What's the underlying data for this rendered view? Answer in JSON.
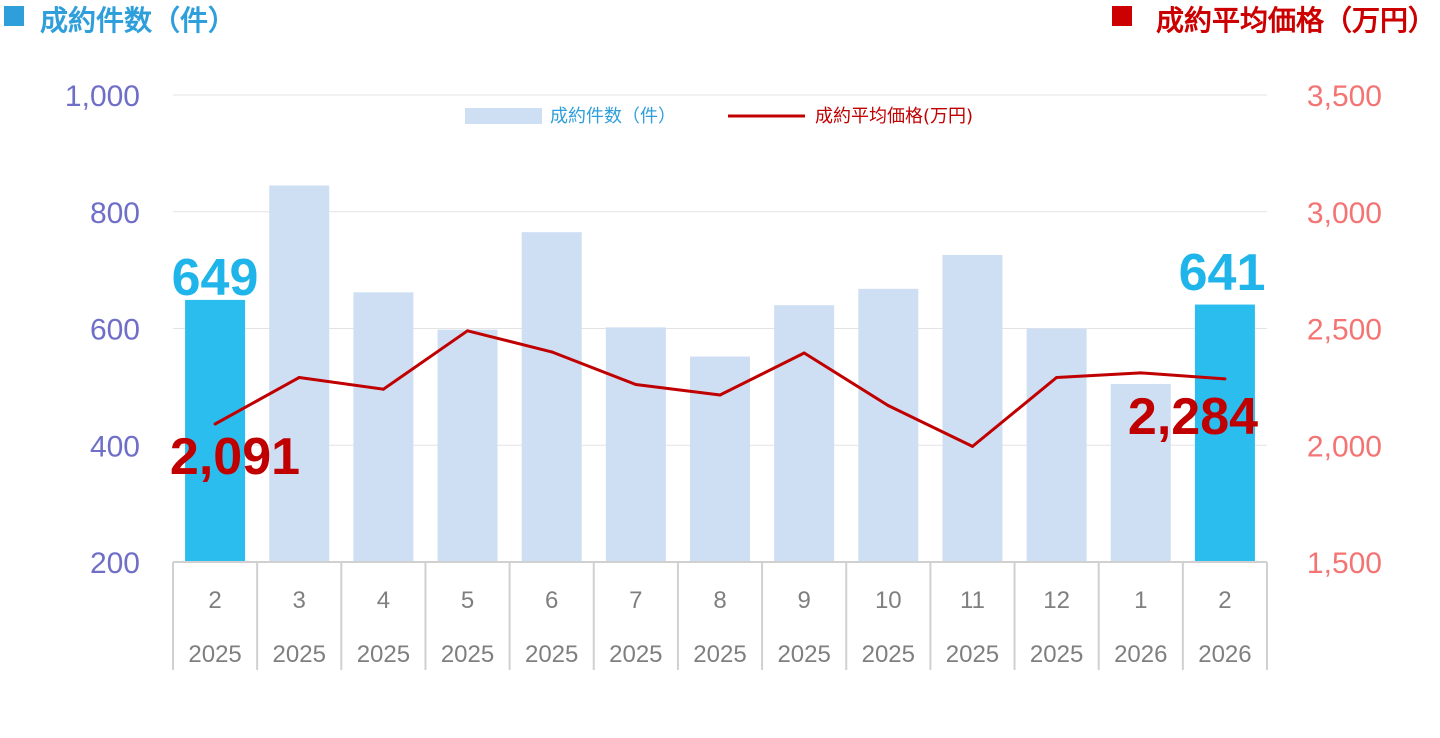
{
  "header": {
    "left_title": "成約件数（件）",
    "right_title": "成約平均価格（万円）"
  },
  "legend": {
    "bars_label": "成約件数（件）",
    "line_label": "成約平均価格(万円)"
  },
  "colors": {
    "bar_normal": "#cfdff3",
    "bar_highlight": "#2bbdee",
    "line": "#c00000",
    "left_axis": "#6f6fc8",
    "right_axis": "#f47474",
    "left_header": "#2f9fdc",
    "right_header": "#cc0000",
    "highlight_text_bar": "#1fb5ea",
    "highlight_text_line": "#c00000"
  },
  "chart_data": {
    "type": "bar",
    "categories": [
      "2",
      "3",
      "4",
      "5",
      "6",
      "7",
      "8",
      "9",
      "10",
      "11",
      "12",
      "1",
      "2"
    ],
    "years": [
      "2025",
      "2025",
      "2025",
      "2025",
      "2025",
      "2025",
      "2025",
      "2025",
      "2025",
      "2025",
      "2025",
      "2026",
      "2026"
    ],
    "series": [
      {
        "name": "成約件数（件）",
        "type": "bar",
        "axis": "left",
        "values": [
          649,
          845,
          662,
          598,
          765,
          602,
          552,
          640,
          668,
          726,
          600,
          505,
          641
        ],
        "highlight": [
          true,
          false,
          false,
          false,
          false,
          false,
          false,
          false,
          false,
          false,
          false,
          false,
          true
        ]
      },
      {
        "name": "成約平均価格(万円)",
        "type": "line",
        "axis": "right",
        "values": [
          2091,
          2290,
          2240,
          2490,
          2400,
          2260,
          2215,
          2395,
          2170,
          1995,
          2290,
          2310,
          2284
        ]
      }
    ],
    "left_axis": {
      "ylim": [
        200,
        1000
      ],
      "ticks": [
        "200",
        "400",
        "600",
        "800",
        "1,000"
      ],
      "tick_values": [
        200,
        400,
        600,
        800,
        1000
      ]
    },
    "right_axis": {
      "ylim": [
        1500,
        3500
      ],
      "ticks": [
        "1,500",
        "2,000",
        "2,500",
        "3,000",
        "3,500"
      ],
      "tick_values": [
        1500,
        2000,
        2500,
        3000,
        3500
      ]
    },
    "annotations": {
      "first_bar": "649",
      "last_bar": "641",
      "first_line": "2,091",
      "last_line": "2,284"
    },
    "grid": true,
    "legend_position": "top-center"
  }
}
